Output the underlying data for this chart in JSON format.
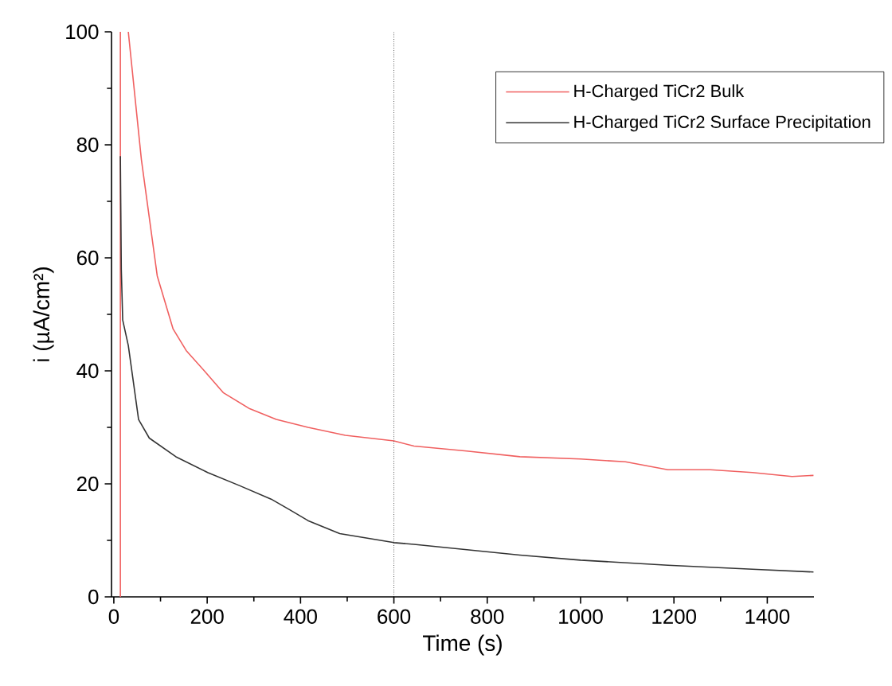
{
  "chart_data": {
    "type": "line",
    "xlabel": "Time (s)",
    "ylabel": "i (µA/cm²)",
    "xlim": [
      -5,
      1500
    ],
    "ylim": [
      0,
      100
    ],
    "xticks": [
      0,
      200,
      400,
      600,
      800,
      1000,
      1200,
      1400
    ],
    "yticks": [
      0,
      20,
      40,
      60,
      80,
      100
    ],
    "grid": false,
    "legend": "top right",
    "line_style": "solid",
    "marker": "none",
    "series": [
      {
        "name": "H-Charged TiCr2 Bulk",
        "color": "#f06060",
        "x": [
          14,
          14,
          22,
          31,
          59,
          93,
          127,
          155,
          195,
          235,
          291,
          348,
          416,
          496,
          600,
          643,
          756,
          870,
          1000,
          1096,
          1187,
          1278,
          1368,
          1453,
          1499
        ],
        "values": [
          0,
          100,
          null,
          100,
          77.4,
          56.8,
          47.4,
          43.6,
          39.9,
          36.1,
          33.3,
          31.4,
          30.0,
          28.6,
          27.6,
          26.7,
          25.8,
          24.8,
          24.4,
          23.9,
          22.5,
          22.5,
          22.0,
          21.3,
          21.5
        ]
      },
      {
        "name": "H-Charged TiCr2 Surface Precipitation",
        "color": "#333333",
        "x": [
          14,
          16,
          19,
          31,
          53,
          76,
          133,
          201,
          269,
          337,
          377,
          416,
          484,
          600,
          643,
          870,
          1000,
          1187,
          1368,
          1499
        ],
        "values": [
          78,
          58,
          49,
          44.5,
          31.4,
          28.1,
          24.8,
          22,
          19.7,
          17.3,
          15.4,
          13.5,
          11.2,
          9.6,
          9.3,
          7.4,
          6.5,
          5.6,
          4.9,
          4.4
        ]
      }
    ],
    "ref_lines": [
      {
        "axis": "x",
        "value": 600,
        "color": "#000000",
        "line_style": "dotted"
      }
    ]
  }
}
